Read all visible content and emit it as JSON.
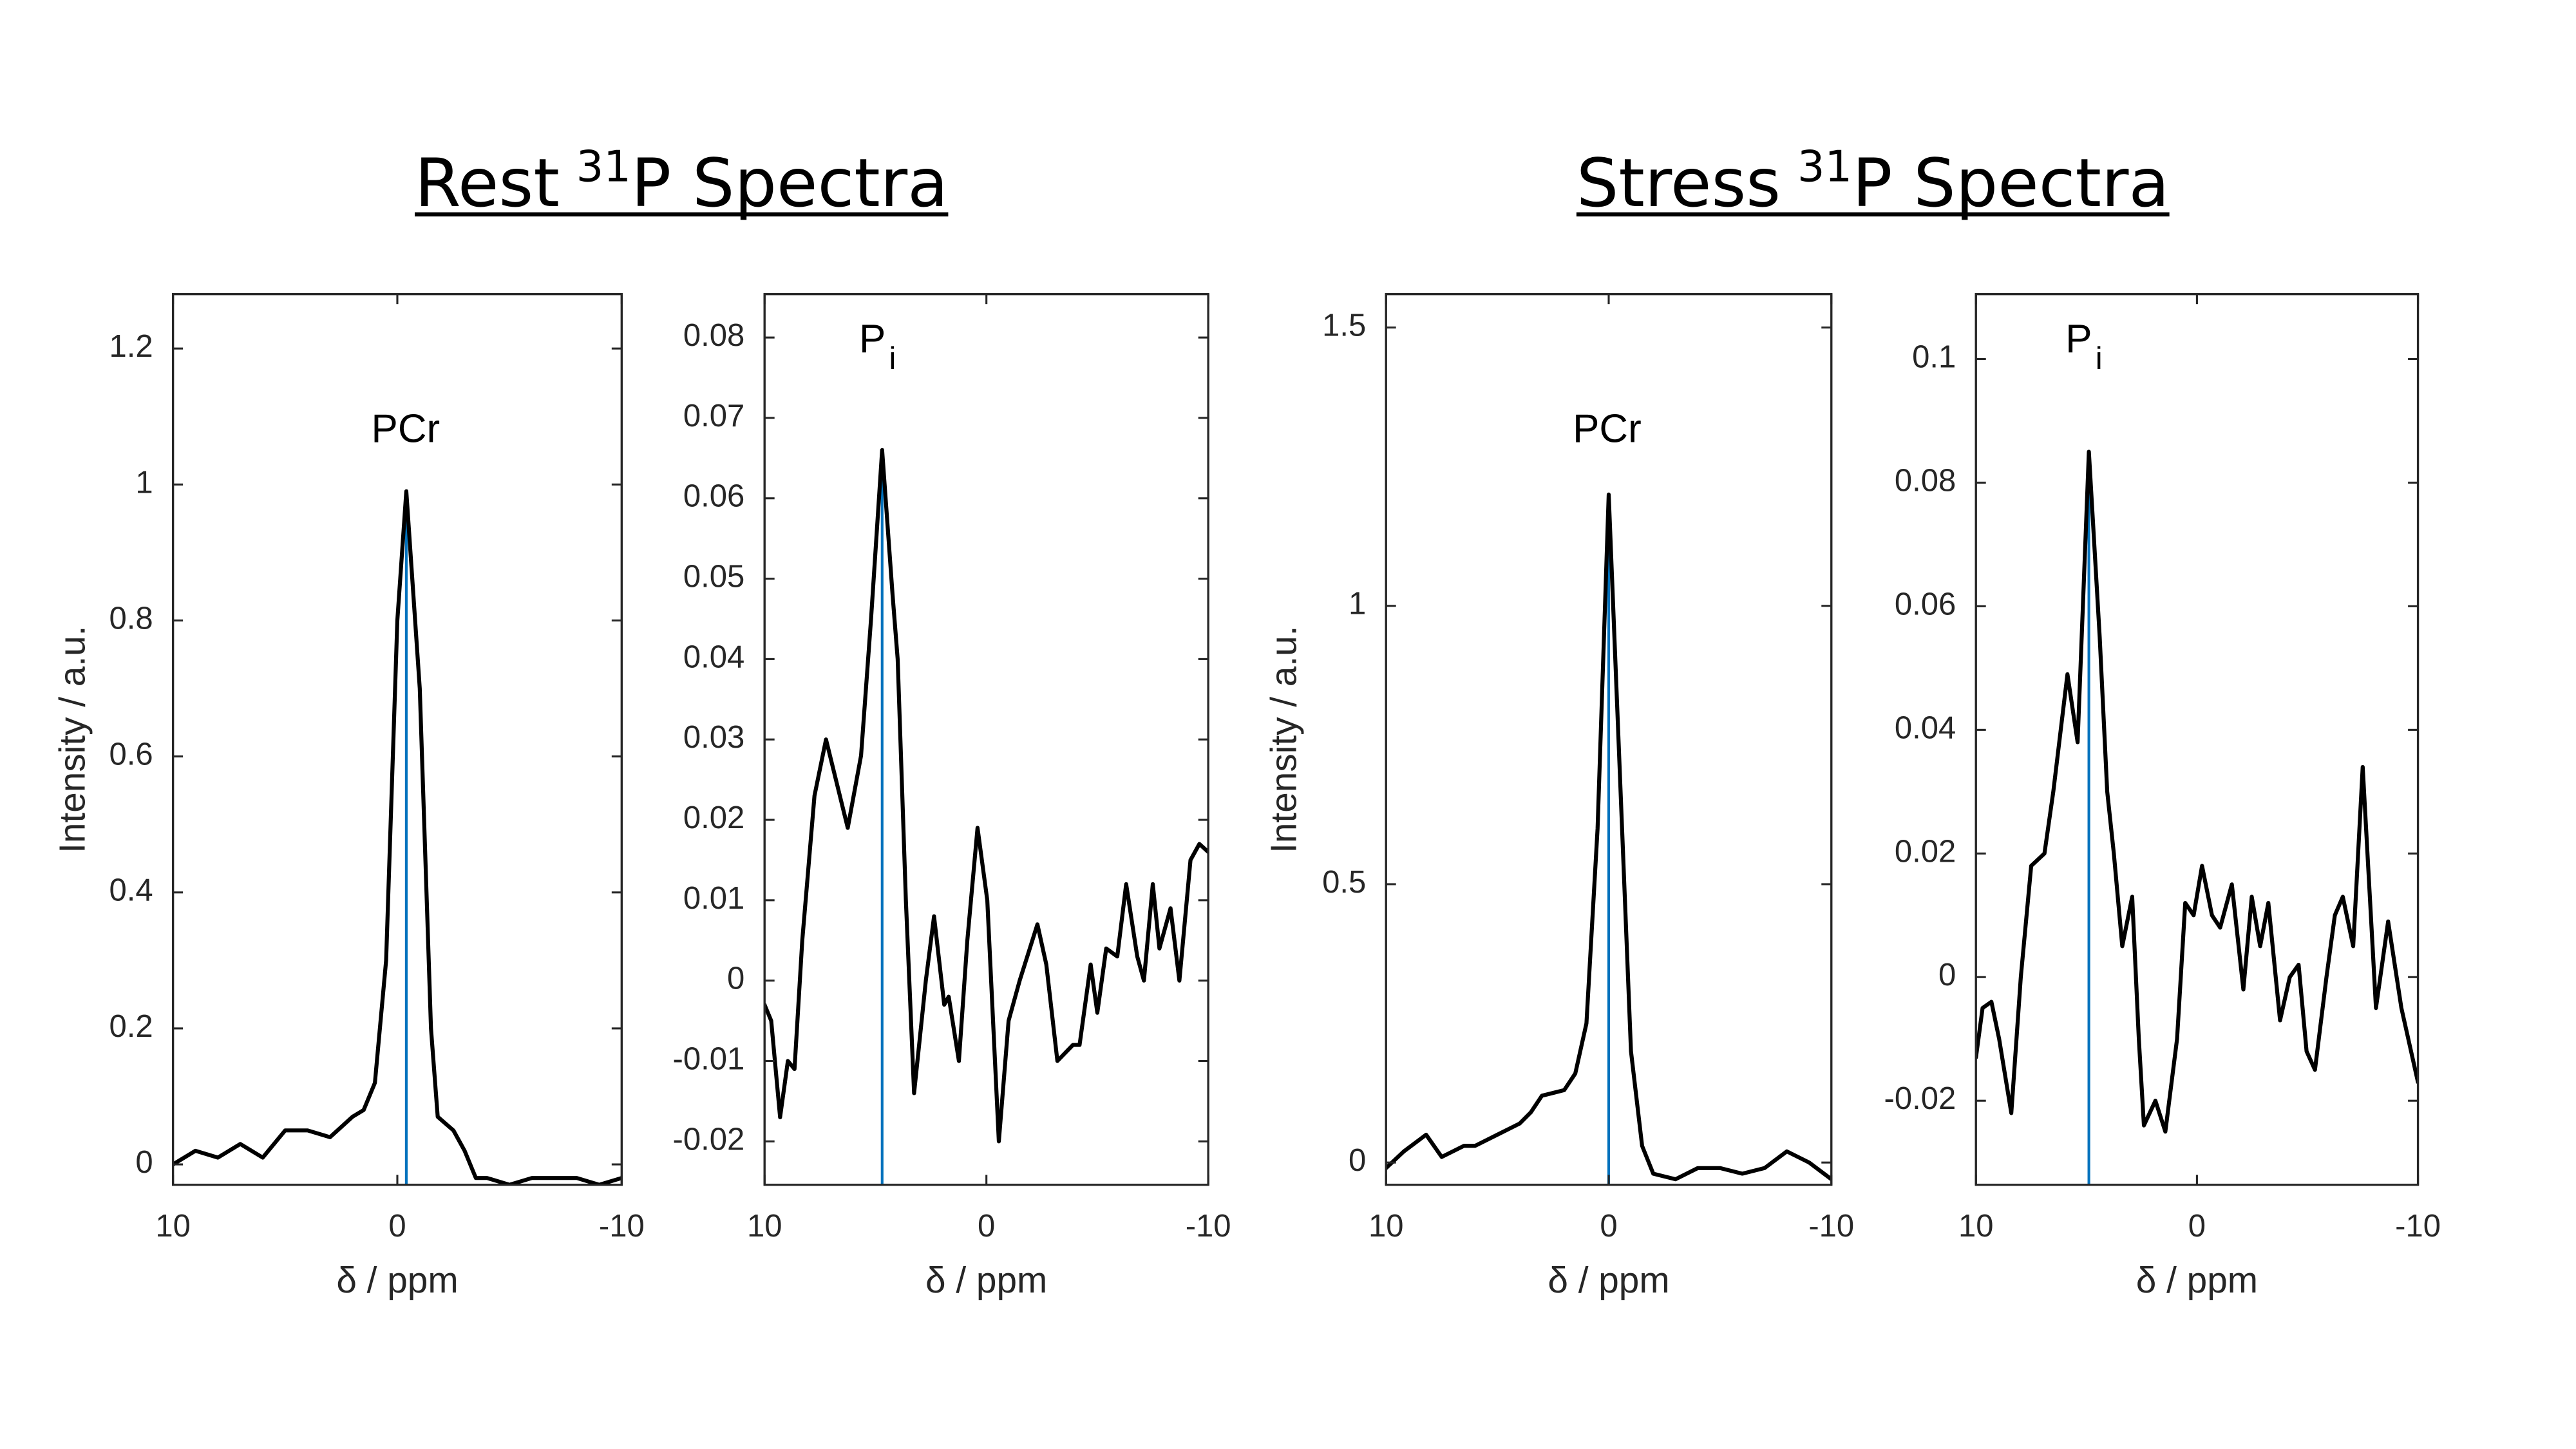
{
  "headings": [
    {
      "text": "Rest",
      "sup": "31",
      "rest": "P Spectra"
    },
    {
      "text": "Stress",
      "sup": "31",
      "rest": "P Spectra"
    }
  ],
  "chart_data": [
    {
      "type": "line",
      "xlabel": "δ / ppm",
      "ylabel": "Intensity / a.u.",
      "annotation": {
        "text": "PCr"
      },
      "xlim": [
        10,
        -10
      ],
      "xticks": [
        10,
        0,
        -10
      ],
      "ylim": [
        -0.03,
        1.28
      ],
      "yticks": [
        0,
        0.2,
        0.4,
        0.6,
        0.8,
        1,
        1.2
      ],
      "x": [
        10,
        9,
        8,
        7,
        6,
        5,
        4,
        3,
        2,
        1.5,
        1,
        0.5,
        0,
        -0.4,
        -1,
        -1.5,
        -1.8,
        -2.5,
        -3,
        -3.5,
        -4,
        -5,
        -6,
        -7,
        -8,
        -9,
        -10
      ],
      "series": [
        {
          "color": "#000000",
          "values": [
            0.0,
            0.02,
            0.01,
            0.03,
            0.01,
            0.05,
            0.05,
            0.04,
            0.07,
            0.08,
            0.12,
            0.3,
            0.8,
            0.99,
            0.7,
            0.2,
            0.07,
            0.05,
            0.02,
            -0.02,
            -0.02,
            -0.03,
            -0.02,
            -0.02,
            -0.02,
            -0.03,
            -0.02
          ]
        }
      ],
      "peak": {
        "x": -0.4,
        "value": 0.99,
        "color": "#0072bd"
      }
    },
    {
      "type": "line",
      "xlabel": "δ / ppm",
      "annotation": {
        "text": "P",
        "sub": "i"
      },
      "xlim": [
        10,
        -10
      ],
      "xticks": [
        10,
        0,
        -10
      ],
      "ylim": [
        -0.0254,
        0.0854
      ],
      "yticks": [
        -0.02,
        -0.01,
        0,
        0.01,
        0.02,
        0.03,
        0.04,
        0.05,
        0.06,
        0.07,
        0.08
      ],
      "x": [
        10,
        9.7,
        9.3,
        8.95,
        8.65,
        8.3,
        7.75,
        7.23,
        6.25,
        5.65,
        5.2,
        4.7,
        4.23,
        4.0,
        3.63,
        3.26,
        2.73,
        2.36,
        1.9,
        1.7,
        1.24,
        0.86,
        0.4,
        -0.04,
        -0.56,
        -1.0,
        -1.5,
        -2.3,
        -2.7,
        -3.2,
        -3.9,
        -4.2,
        -4.7,
        -5.0,
        -5.4,
        -5.9,
        -6.3,
        -6.8,
        -7.1,
        -7.5,
        -7.8,
        -8.3,
        -8.7,
        -9.2,
        -9.6,
        -10
      ],
      "series": [
        {
          "color": "#000000",
          "values": [
            -0.003,
            -0.005,
            -0.017,
            -0.01,
            -0.011,
            0.005,
            0.023,
            0.03,
            0.019,
            0.028,
            0.045,
            0.066,
            0.048,
            0.04,
            0.01,
            -0.014,
            0.0,
            0.008,
            -0.003,
            -0.002,
            -0.01,
            0.005,
            0.019,
            0.01,
            -0.02,
            -0.005,
            0.0,
            0.007,
            0.002,
            -0.01,
            -0.008,
            -0.008,
            0.002,
            -0.004,
            0.004,
            0.003,
            0.012,
            0.003,
            0.0,
            0.012,
            0.004,
            0.009,
            0.0,
            0.015,
            0.017,
            0.016
          ]
        }
      ],
      "peak": {
        "x": 4.7,
        "value": 0.066,
        "color": "#0072bd"
      }
    },
    {
      "type": "line",
      "xlabel": "δ / ppm",
      "ylabel": "Intensity / a.u.",
      "annotation": {
        "text": "PCr"
      },
      "xlim": [
        10,
        -10
      ],
      "xticks": [
        10,
        0,
        -10
      ],
      "ylim": [
        -0.04,
        1.56
      ],
      "yticks": [
        0,
        0.5,
        1,
        1.5
      ],
      "x": [
        10,
        9.2,
        8.2,
        7.5,
        7,
        6.5,
        6,
        5,
        4,
        3.5,
        3,
        2,
        1.5,
        1,
        0.5,
        0,
        -0.5,
        -1,
        -1.5,
        -2,
        -3,
        -4,
        -5,
        -6,
        -7,
        -8,
        -9,
        -10
      ],
      "series": [
        {
          "color": "#000000",
          "values": [
            -0.01,
            0.02,
            0.05,
            0.01,
            0.02,
            0.03,
            0.03,
            0.05,
            0.07,
            0.09,
            0.12,
            0.13,
            0.16,
            0.25,
            0.6,
            1.2,
            0.7,
            0.2,
            0.03,
            -0.02,
            -0.03,
            -0.01,
            -0.01,
            -0.02,
            -0.01,
            0.02,
            0.0,
            -0.03
          ]
        }
      ],
      "peak": {
        "x": 0,
        "value": 1.2,
        "color": "#0072bd"
      }
    },
    {
      "type": "line",
      "xlabel": "δ / ppm",
      "annotation": {
        "text": "P",
        "sub": "i"
      },
      "xlim": [
        10,
        -10
      ],
      "xticks": [
        10,
        0,
        -10
      ],
      "ylim": [
        -0.0336,
        0.1105
      ],
      "yticks": [
        -0.02,
        0,
        0.02,
        0.04,
        0.06,
        0.08,
        0.1
      ],
      "x": [
        10,
        9.7,
        9.3,
        8.95,
        8.4,
        7.97,
        7.5,
        6.9,
        6.5,
        5.86,
        5.4,
        4.89,
        4.4,
        4.06,
        3.76,
        3.38,
        2.93,
        2.63,
        2.4,
        1.88,
        1.43,
        0.9,
        0.53,
        0.15,
        -0.23,
        -0.68,
        -1.05,
        -1.58,
        -2.1,
        -2.48,
        -2.86,
        -3.23,
        -3.76,
        -4.2,
        -4.6,
        -4.96,
        -5.34,
        -5.86,
        -6.24,
        -6.6,
        -7.07,
        -7.5,
        -8.1,
        -8.65,
        -9.25,
        -10
      ],
      "series": [
        {
          "color": "#000000",
          "values": [
            -0.013,
            -0.005,
            -0.004,
            -0.01,
            -0.022,
            0.0,
            0.018,
            0.02,
            0.03,
            0.049,
            0.038,
            0.085,
            0.055,
            0.03,
            0.02,
            0.005,
            0.013,
            -0.01,
            -0.024,
            -0.02,
            -0.025,
            -0.01,
            0.012,
            0.01,
            0.018,
            0.01,
            0.008,
            0.015,
            -0.002,
            0.013,
            0.005,
            0.012,
            -0.007,
            0.0,
            0.002,
            -0.012,
            -0.015,
            0.0,
            0.01,
            0.013,
            0.005,
            0.034,
            -0.005,
            0.009,
            -0.005,
            -0.017
          ]
        }
      ],
      "peak": {
        "x": 4.89,
        "value": 0.085,
        "color": "#0072bd"
      }
    }
  ]
}
